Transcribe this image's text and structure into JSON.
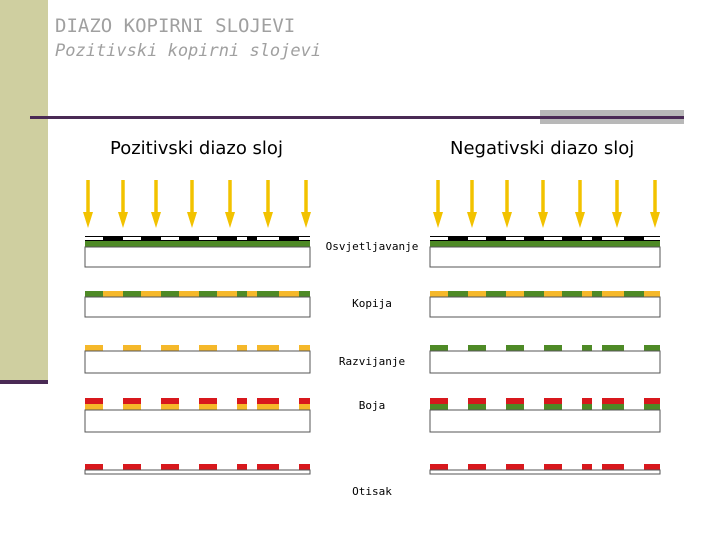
{
  "title": "DIAZO KOPIRNI SLOJEVI",
  "subtitle": "Pozitivski kopirni slojevi",
  "headings": {
    "positive": "Pozitivski diazo sloj",
    "negative": "Negativski diazo sloj"
  },
  "steps": [
    {
      "key": "exposure",
      "label": "Osvjetljavanje"
    },
    {
      "key": "copy",
      "label": "Kopija"
    },
    {
      "key": "developing",
      "label": "Razvijanje"
    },
    {
      "key": "dye",
      "label": "Boja"
    },
    {
      "key": "print",
      "label": "Otisak"
    }
  ],
  "colors": {
    "arrow": "#f2c200",
    "green": "#4e8a26",
    "yellow": "#f5b82a",
    "red": "#d8181d",
    "black": "#000000",
    "substrate_border": "#555555",
    "accent_purple": "#4a2a55",
    "band": "#cfcfa0",
    "title_grey": "#a0a0a0"
  }
}
